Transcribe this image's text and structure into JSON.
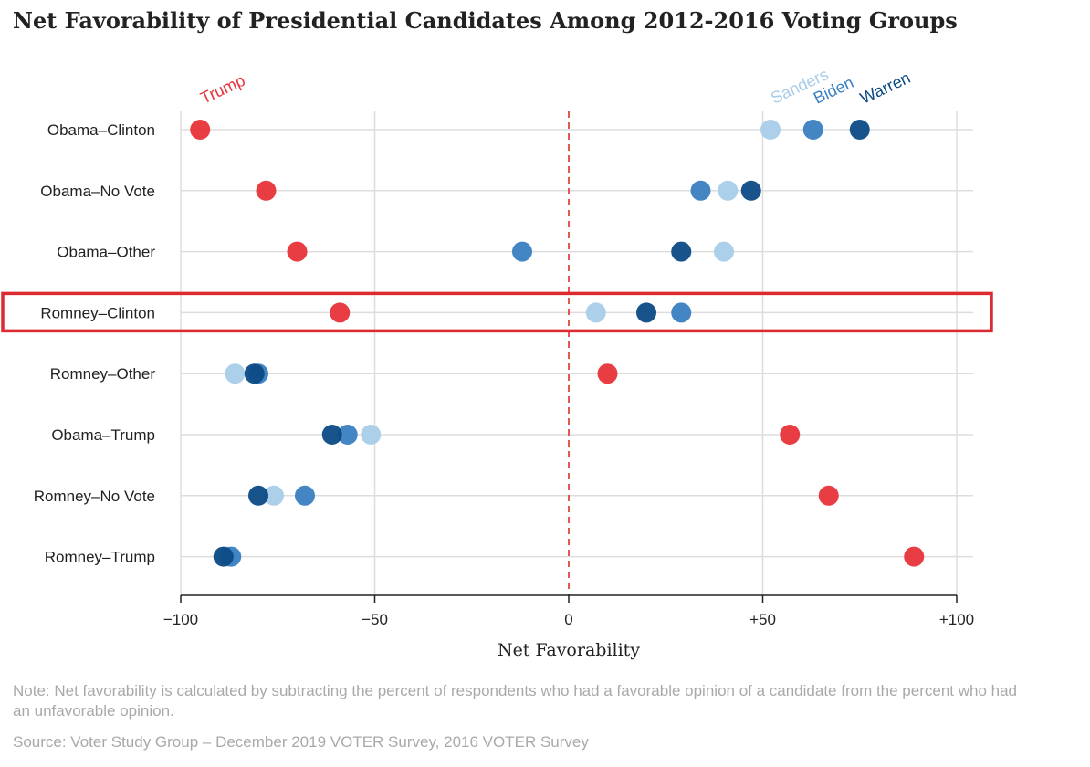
{
  "chart_data": {
    "type": "scatter",
    "title": "Net Favorability of Presidential Candidates Among 2012-2016 Voting Groups",
    "xlabel": "Net Favorability",
    "xlim": [
      -100,
      100
    ],
    "x_ticks": [
      -100,
      -50,
      0,
      50,
      100
    ],
    "x_tick_labels": [
      "−100",
      "−50",
      "0",
      "+50",
      "+100"
    ],
    "grid": true,
    "reference_line": {
      "x": 0,
      "style": "dashed",
      "color": "#e05a4e"
    },
    "categories": [
      "Obama–Clinton",
      "Obama–No Vote",
      "Obama–Other",
      "Romney–Clinton",
      "Romney–Other",
      "Obama–Trump",
      "Romney–No Vote",
      "Romney–Trump"
    ],
    "highlighted_category": "Romney–Clinton",
    "series": [
      {
        "name": "Sanders",
        "color": "#a8cde9",
        "values": [
          52,
          41,
          40,
          7,
          -86,
          -51,
          -76,
          -88
        ]
      },
      {
        "name": "Biden",
        "color": "#3a7fc1",
        "values": [
          63,
          34,
          -12,
          29,
          -80,
          -57,
          -68,
          -87
        ]
      },
      {
        "name": "Warren",
        "color": "#0c4a85",
        "values": [
          75,
          47,
          29,
          20,
          -81,
          -61,
          -80,
          -89
        ]
      },
      {
        "name": "Trump",
        "color": "#e8333a",
        "values": [
          -95,
          -78,
          -70,
          -59,
          10,
          57,
          67,
          89
        ]
      }
    ]
  },
  "note": "Note: Net favorability is calculated by subtracting the percent of respondents who had a favorable opinion of a candidate from the percent who had an unfavorable opinion.",
  "source": "Source: Voter Study Group – December 2019 VOTER Survey, 2016 VOTER Survey"
}
